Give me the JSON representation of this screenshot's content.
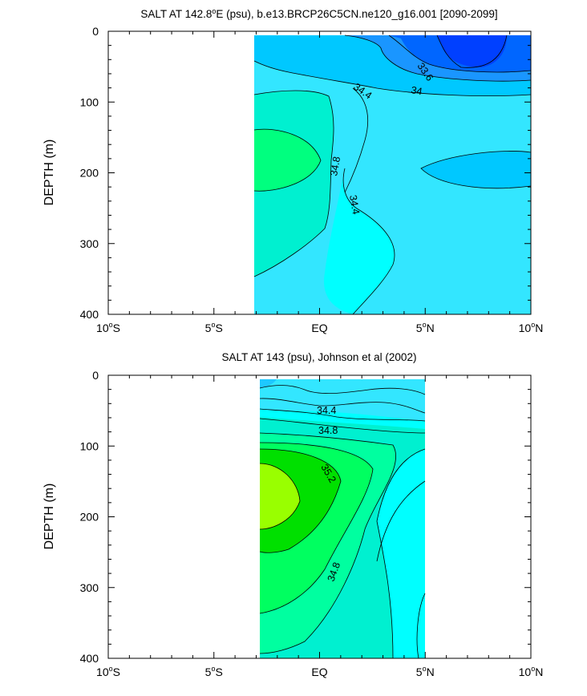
{
  "chart_data": [
    {
      "type": "contour",
      "title": "SALT AT 142.8°E (psu), b.e13.BRCP26C5CN.ne120_g16.001 [2090-2099]",
      "title_parts": {
        "pre": "SALT AT 142.8",
        "sup": "o",
        "post": "E (psu), b.e13.BRCP26C5CN.ne120_g16.001 [2090-2099]"
      },
      "ylabel": "DEPTH (m)",
      "xlim": [
        -10,
        10
      ],
      "ylim": [
        0,
        400
      ],
      "y_inverted": true,
      "data_extent_x": [
        -3,
        10
      ],
      "x_ticks": [
        {
          "value": -10,
          "label": "10°S",
          "num": "10",
          "sup": "o",
          "hemi": "S"
        },
        {
          "value": -5,
          "label": "5°S",
          "num": "5",
          "sup": "o",
          "hemi": "S"
        },
        {
          "value": 0,
          "label": "EQ",
          "num": "EQ",
          "sup": "",
          "hemi": ""
        },
        {
          "value": 5,
          "label": "5°N",
          "num": "5",
          "sup": "o",
          "hemi": "N"
        },
        {
          "value": 10,
          "label": "10°N",
          "num": "10",
          "sup": "o",
          "hemi": "N"
        }
      ],
      "y_ticks": [
        0,
        100,
        200,
        300,
        400
      ],
      "y_tick_labels": [
        "0",
        "100",
        "200",
        "300",
        "400"
      ],
      "contour_labels": [
        {
          "text": "33.6",
          "x": 4.5,
          "y": 40
        },
        {
          "text": "34",
          "x": 4.4,
          "y": 82
        },
        {
          "text": "34.4",
          "x": 2.0,
          "y": 82
        },
        {
          "text": "34.8",
          "x": 0.9,
          "y": 190
        },
        {
          "text": "34.4",
          "x": 1.6,
          "y": 255
        }
      ],
      "colors": {
        "fresh": "#0040ff",
        "mid": "#00c8ff",
        "cyan": "#33e6ff",
        "teal": "#00f0d0",
        "green": "#00ff7f"
      }
    },
    {
      "type": "contour",
      "title": "SALT AT 143 (psu), Johnson et al (2002)",
      "ylabel": "DEPTH (m)",
      "xlim": [
        -10,
        10
      ],
      "ylim": [
        0,
        400
      ],
      "y_inverted": true,
      "data_extent_x": [
        -2.8,
        5
      ],
      "x_ticks": [
        {
          "value": -10,
          "label": "10°S",
          "num": "10",
          "sup": "o",
          "hemi": "S"
        },
        {
          "value": -5,
          "label": "5°S",
          "num": "5",
          "sup": "o",
          "hemi": "S"
        },
        {
          "value": 0,
          "label": "EQ",
          "num": "EQ",
          "sup": "",
          "hemi": ""
        },
        {
          "value": 5,
          "label": "5°N",
          "num": "5",
          "sup": "o",
          "hemi": "N"
        },
        {
          "value": 10,
          "label": "10°N",
          "num": "10",
          "sup": "o",
          "hemi": "N"
        }
      ],
      "y_ticks": [
        0,
        100,
        200,
        300,
        400
      ],
      "y_tick_labels": [
        "0",
        "100",
        "200",
        "300",
        "400"
      ],
      "contour_labels": [
        {
          "text": "34.4",
          "x": 0.3,
          "y": 48
        },
        {
          "text": "34.8",
          "x": 0.3,
          "y": 78
        },
        {
          "text": "35.2",
          "x": 0.3,
          "y": 148
        },
        {
          "text": "34.8",
          "x": 0.8,
          "y": 268
        }
      ],
      "colors": {
        "cyan": "#33e6ff",
        "teal": "#00f0d0",
        "green": "#00ff7f",
        "green2": "#00e000",
        "lime": "#99ff00"
      }
    }
  ]
}
